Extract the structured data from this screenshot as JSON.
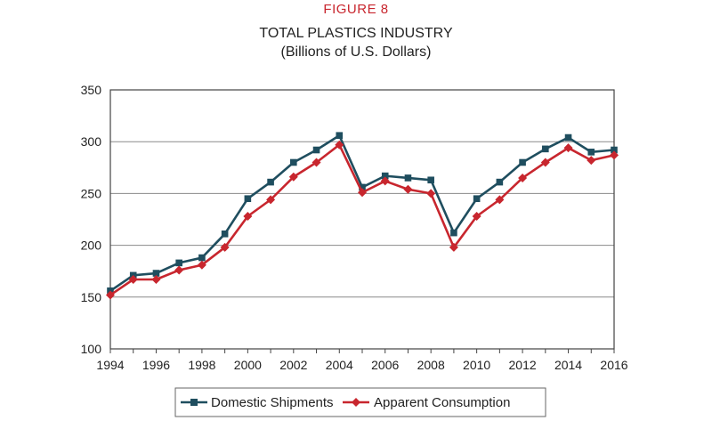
{
  "figure_label": "FIGURE 8",
  "chart_data": {
    "type": "line",
    "title": "TOTAL PLASTICS INDUSTRY",
    "subtitle": "(Billions of U.S. Dollars)",
    "xlabel": "",
    "ylabel": "",
    "x": [
      1994,
      1995,
      1996,
      1997,
      1998,
      1999,
      2000,
      2001,
      2002,
      2003,
      2004,
      2005,
      2006,
      2007,
      2008,
      2009,
      2010,
      2011,
      2012,
      2013,
      2014,
      2015,
      2016
    ],
    "x_tick_labels": [
      "1994",
      "1996",
      "1998",
      "2000",
      "2002",
      "2004",
      "2006",
      "2008",
      "2010",
      "2012",
      "2014",
      "2016"
    ],
    "ylim": [
      100,
      350
    ],
    "y_ticks": [
      "100",
      "150",
      "200",
      "250",
      "300",
      "350"
    ],
    "grid": "horizontal",
    "legend_position": "bottom",
    "series": [
      {
        "name": "Domestic Shipments",
        "color": "#1f4e5f",
        "marker": "square",
        "values": [
          156,
          171,
          173,
          183,
          188,
          211,
          245,
          261,
          280,
          292,
          306,
          256,
          267,
          265,
          263,
          212,
          245,
          261,
          280,
          293,
          304,
          290,
          292
        ]
      },
      {
        "name": "Apparent Consumption",
        "color": "#c8262e",
        "marker": "diamond",
        "values": [
          152,
          167,
          167,
          176,
          181,
          198,
          228,
          244,
          266,
          280,
          297,
          251,
          262,
          254,
          250,
          198,
          228,
          244,
          265,
          280,
          294,
          282,
          287
        ]
      }
    ]
  }
}
